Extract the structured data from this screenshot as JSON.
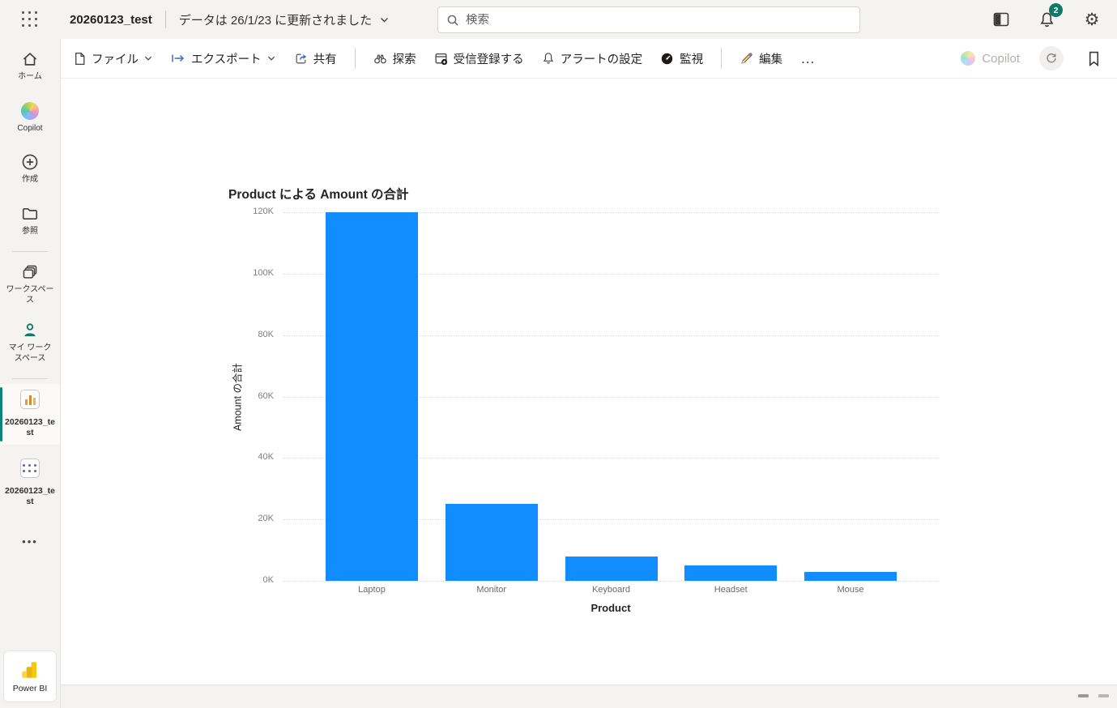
{
  "header": {
    "title": "20260123_test",
    "status": "データは 26/1/23 に更新されました",
    "search_placeholder": "検索",
    "notification_count": "2",
    "gear_glyph": "⚙"
  },
  "toolbar": {
    "file": "ファイル",
    "export": "エクスポート",
    "share": "共有",
    "explore": "探索",
    "subscribe": "受信登録する",
    "alerts": "アラートの設定",
    "monitor": "監視",
    "edit": "編集",
    "more": "…",
    "copilot": "Copilot"
  },
  "sidebar": {
    "home": "ホーム",
    "copilot": "Copilot",
    "create": "作成",
    "browse": "参照",
    "workspaces": "ワークスペース",
    "my_workspace": "マイ ワークスペース",
    "report": "20260123_test",
    "model": "20260123_test",
    "more": "•••",
    "brand": "Power BI"
  },
  "colors": {
    "bar_blue": "#118DFF",
    "accent_teal": "#117865",
    "brand_yellow": "#F2C811"
  },
  "chart_data": {
    "type": "bar",
    "title": "Product による Amount の合計",
    "categories": [
      "Laptop",
      "Monitor",
      "Keyboard",
      "Headset",
      "Mouse"
    ],
    "values": [
      120000,
      25000,
      8000,
      5000,
      3000
    ],
    "xlabel": "Product",
    "ylabel": "Amount の合計",
    "ylim": [
      0,
      120000
    ],
    "ytick_step": 20000,
    "ytick_labels": [
      "0K",
      "20K",
      "40K",
      "60K",
      "80K",
      "100K",
      "120K"
    ],
    "bar_color": "#118DFF",
    "grid": true,
    "legend": false
  }
}
